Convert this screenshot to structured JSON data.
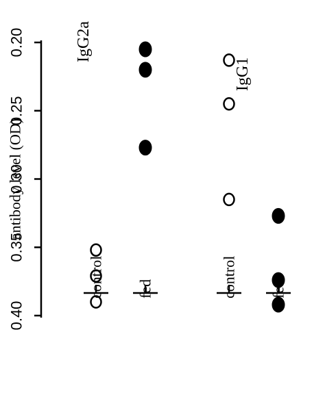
{
  "chart_data": {
    "type": "scatter",
    "ylabel": "antibody level (OD)",
    "ylim": [
      0.2,
      0.4
    ],
    "yticks": [
      "0.40",
      "0.35",
      "0.30",
      "0.25",
      "0.20"
    ],
    "panels": [
      {
        "name": "IgG2a",
        "groups": [
          {
            "label": "control",
            "marker": "open",
            "values": [
              0.39,
              0.371,
              0.352
            ]
          },
          {
            "label": "fed",
            "marker": "filled",
            "values": [
              0.277,
              0.22,
              0.205
            ]
          }
        ]
      },
      {
        "name": "IgG1",
        "groups": [
          {
            "label": "control",
            "marker": "open",
            "values": [
              0.315,
              0.245,
              0.213
            ]
          },
          {
            "label": "fed",
            "marker": "filled",
            "values": [
              0.392,
              0.374,
              0.327
            ]
          }
        ]
      }
    ],
    "colors": {
      "ink": "#000000",
      "background": "#ffffff"
    }
  }
}
